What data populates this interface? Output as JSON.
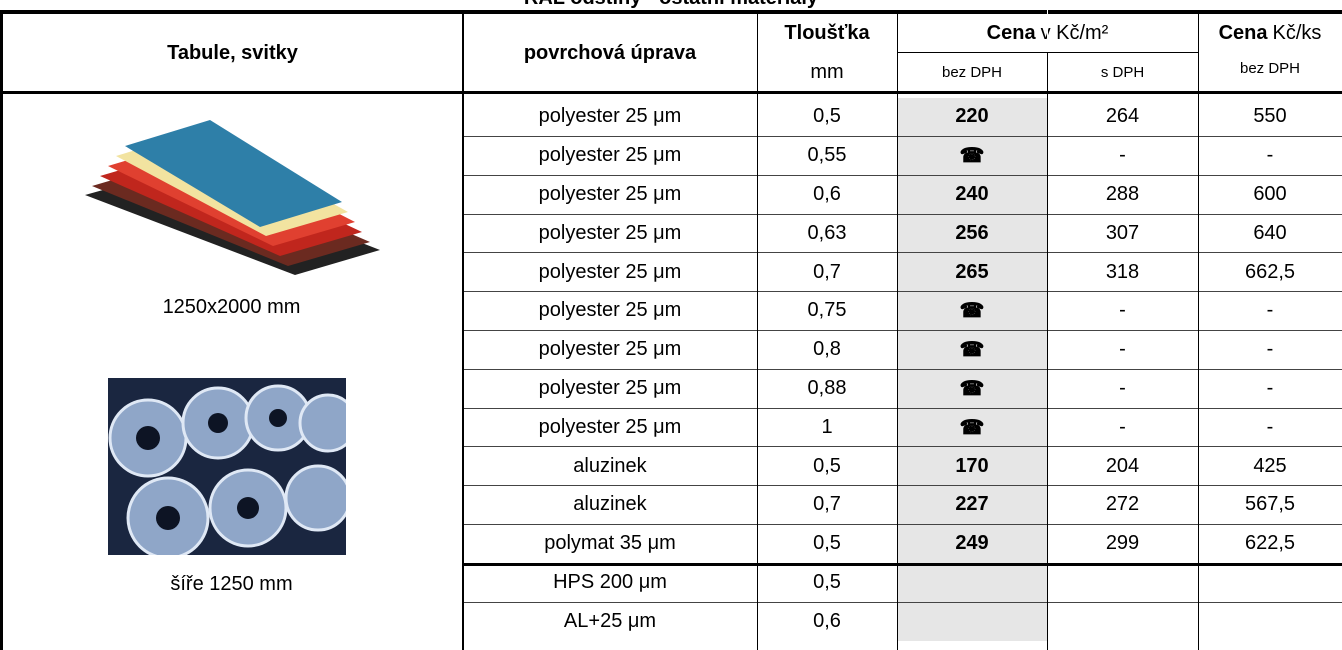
{
  "title": "RAL odstíny - ostatní materiály",
  "header": {
    "col1": "Tabule, svitky",
    "col2": "povrchová úprava",
    "col3": {
      "label": "Tloušťka",
      "unit": "mm"
    },
    "col4": {
      "label": "Cena",
      "unit": "v Kč/m²",
      "sub": [
        "bez DPH",
        "s DPH"
      ]
    },
    "col5": {
      "label": "Cena",
      "unit": "Kč/ks",
      "sub": "bez DPH"
    }
  },
  "images": [
    {
      "caption": "1250x2000 mm"
    },
    {
      "caption": "šíře 1250 mm"
    }
  ],
  "rows": [
    [
      "polyester 25 μm",
      "0,5",
      "220",
      "264",
      "550"
    ],
    [
      "polyester 25 μm",
      "0,55",
      "☎",
      "-",
      "-"
    ],
    [
      "polyester 25 μm",
      "0,6",
      "240",
      "288",
      "600"
    ],
    [
      "polyester 25 μm",
      "0,63",
      "256",
      "307",
      "640"
    ],
    [
      "polyester 25 μm",
      "0,7",
      "265",
      "318",
      "662,5"
    ],
    [
      "polyester 25 μm",
      "0,75",
      "☎",
      "-",
      "-"
    ],
    [
      "polyester 25 μm",
      "0,8",
      "☎",
      "-",
      "-"
    ],
    [
      "polyester 25 μm",
      "0,88",
      "☎",
      "-",
      "-"
    ],
    [
      "polyester 25 μm",
      "1",
      "☎",
      "-",
      "-"
    ],
    [
      "aluzinek",
      "0,5",
      "170",
      "204",
      "425"
    ],
    [
      "aluzinek",
      "0,7",
      "227",
      "272",
      "567,5"
    ],
    [
      "polymat 35 μm",
      "0,5",
      "249",
      "299",
      "622,5"
    ],
    [
      "HPS 200 μm",
      "0,5"
    ],
    [
      "AL+25 μm",
      "0,6"
    ]
  ]
}
